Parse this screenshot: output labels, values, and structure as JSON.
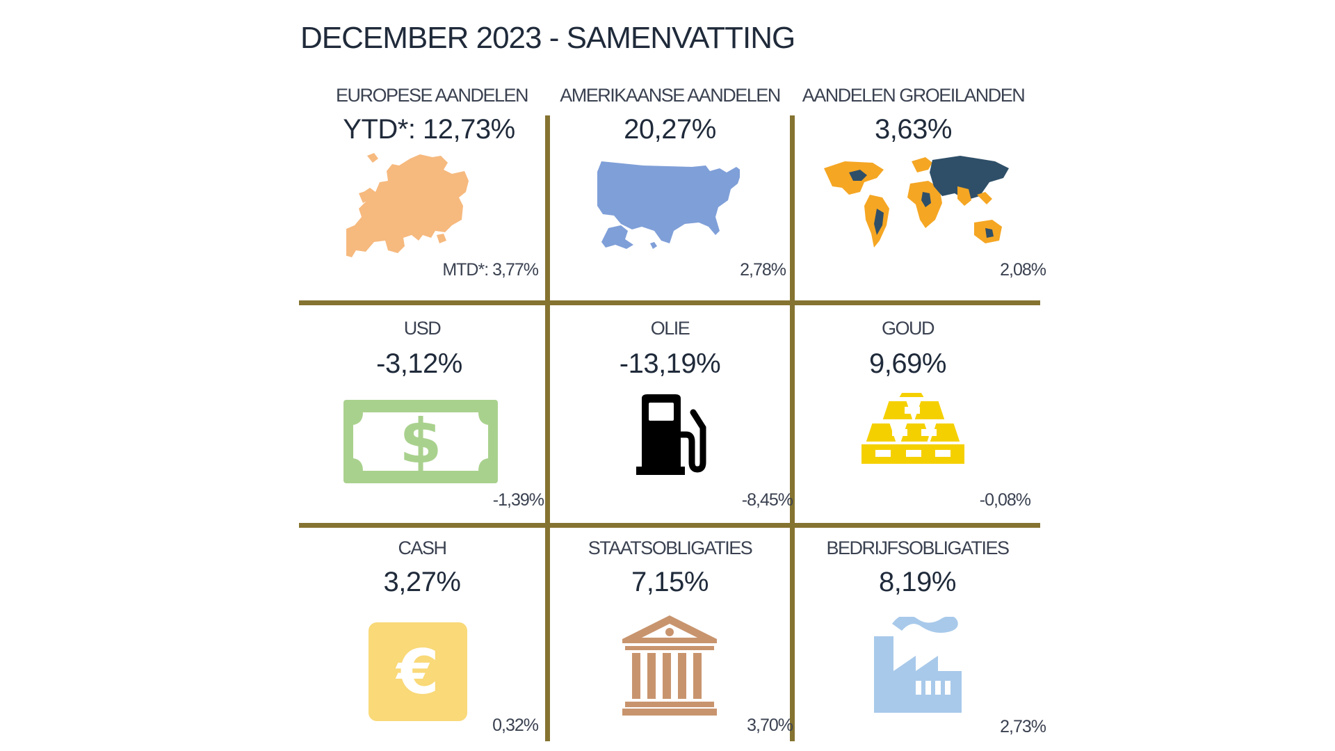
{
  "title": "DECEMBER 2023 - SAMENVATTING",
  "cells": [
    {
      "label": "EUROPESE AANDELEN",
      "ytd": "YTD*: 12,73%",
      "mtd": "MTD*: 3,77%",
      "icon": "europe-map-icon",
      "color": "#f6b97e"
    },
    {
      "label": "AMERIKAANSE AANDELEN",
      "ytd": "20,27%",
      "mtd": "2,78%",
      "icon": "usa-map-icon",
      "color": "#7f9fd8"
    },
    {
      "label": "AANDELEN GROEILANDEN",
      "ytd": "3,63%",
      "mtd": "2,08%",
      "icon": "world-map-icon",
      "color": "#f5a623"
    },
    {
      "label": "USD",
      "ytd": "-3,12%",
      "mtd": "-1,39%",
      "icon": "dollar-bill-icon",
      "color": "#a9d18e"
    },
    {
      "label": "OLIE",
      "ytd": "-13,19%",
      "mtd": "-8,45%",
      "icon": "fuel-pump-icon",
      "color": "#000000"
    },
    {
      "label": "GOUD",
      "ytd": "9,69%",
      "mtd": "-0,08%",
      "icon": "gold-bars-icon",
      "color": "#f5d000"
    },
    {
      "label": "CASH",
      "ytd": "3,27%",
      "mtd": "0,32%",
      "icon": "euro-icon",
      "color": "#f9d978"
    },
    {
      "label": "STAATSOBLIGATIES",
      "ytd": "7,15%",
      "mtd": "3,70%",
      "icon": "government-building-icon",
      "color": "#c8946e"
    },
    {
      "label": "BEDRIJFSOBLIGATIES",
      "ytd": "8,19%",
      "mtd": "2,73%",
      "icon": "factory-icon",
      "color": "#a8c9ea"
    }
  ]
}
